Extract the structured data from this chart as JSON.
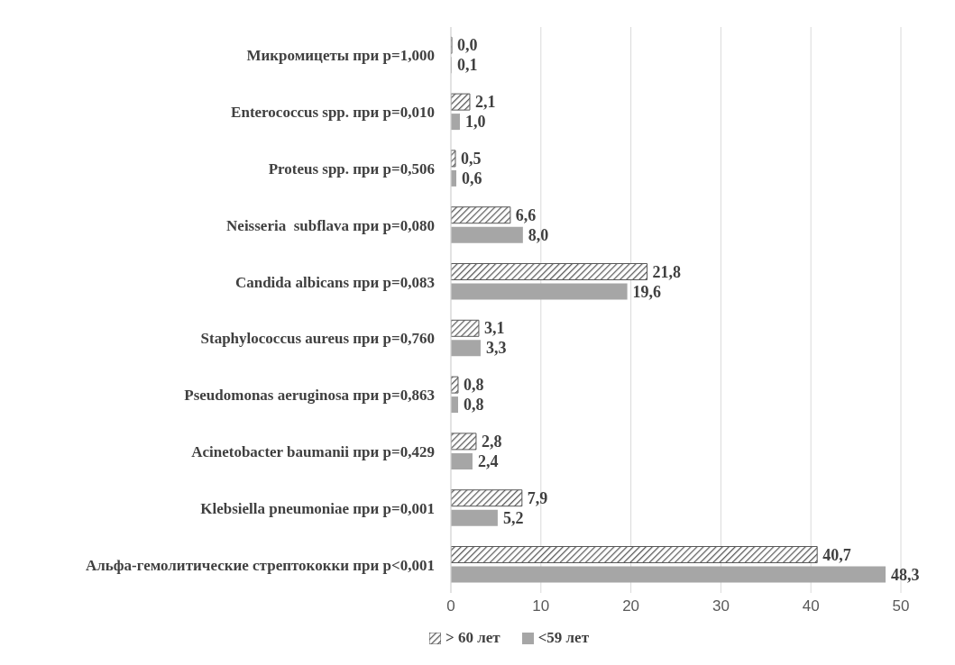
{
  "chart_data": {
    "type": "bar",
    "orientation": "horizontal",
    "categories": [
      "Микромицеты при p=1,000",
      "Enterococcus spp. при p=0,010",
      "Proteus spp. при p=0,506",
      "Neisseria  subflava при p=0,080",
      "Candida albicans при p=0,083",
      "Staphylococcus aureus при p=0,760",
      "Pseudomonas aeruginosa при p=0,863",
      "Acinetobacter baumanii при p=0,429",
      "Klebsiella pneumoniae при p=0,001",
      "Альфа-гемолитические стрептококки при p<0,001"
    ],
    "series": [
      {
        "name": "> 60 лет",
        "color": "#595959",
        "values": [
          0.0,
          2.1,
          0.5,
          6.6,
          21.8,
          3.1,
          0.8,
          2.8,
          7.9,
          40.7
        ],
        "value_labels": [
          "0,0",
          "2,1",
          "0,5",
          "6,6",
          "21,8",
          "3,1",
          "0,8",
          "2,8",
          "7,9",
          "40,7"
        ]
      },
      {
        "name": "<59 лет",
        "color": "#a6a6a6",
        "values": [
          0.1,
          1.0,
          0.6,
          8.0,
          19.6,
          3.3,
          0.8,
          2.4,
          5.2,
          48.3
        ],
        "value_labels": [
          "0,1",
          "1,0",
          "0,6",
          "8,0",
          "19,6",
          "3,3",
          "0,8",
          "2,4",
          "5,2",
          "48,3"
        ]
      }
    ],
    "xlim": [
      0,
      50
    ],
    "xticks": [
      0,
      10,
      20,
      30,
      40,
      50
    ],
    "grid": "x",
    "legend": "bottom"
  }
}
